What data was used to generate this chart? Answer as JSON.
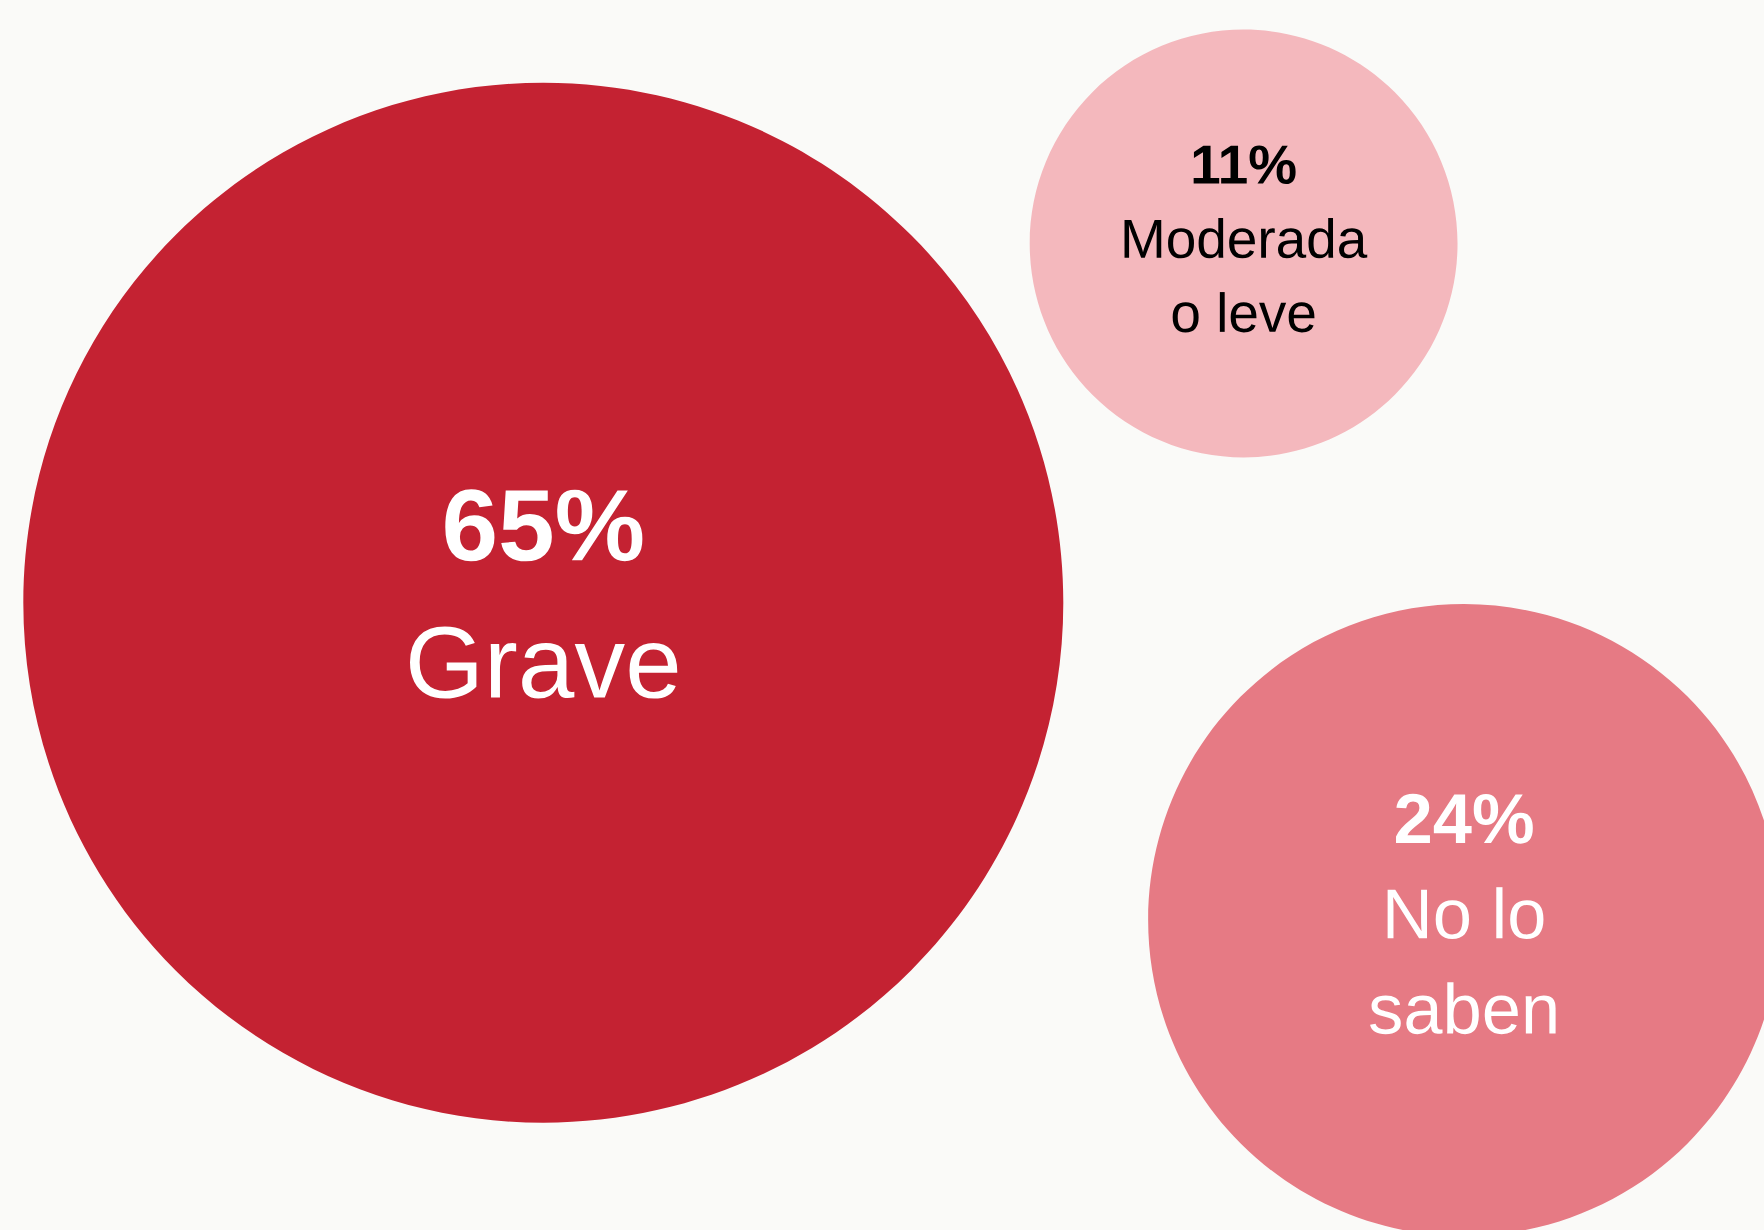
{
  "chart_data": {
    "type": "other",
    "categories": [
      "Grave",
      "Moderada\no leve",
      "No lo\nsaben"
    ],
    "values": [
      65,
      11,
      24
    ],
    "value_labels": [
      "65%",
      "11%",
      "24%"
    ],
    "colors": [
      "#c42232",
      "#f4b8bd",
      "#e67a84"
    ]
  }
}
